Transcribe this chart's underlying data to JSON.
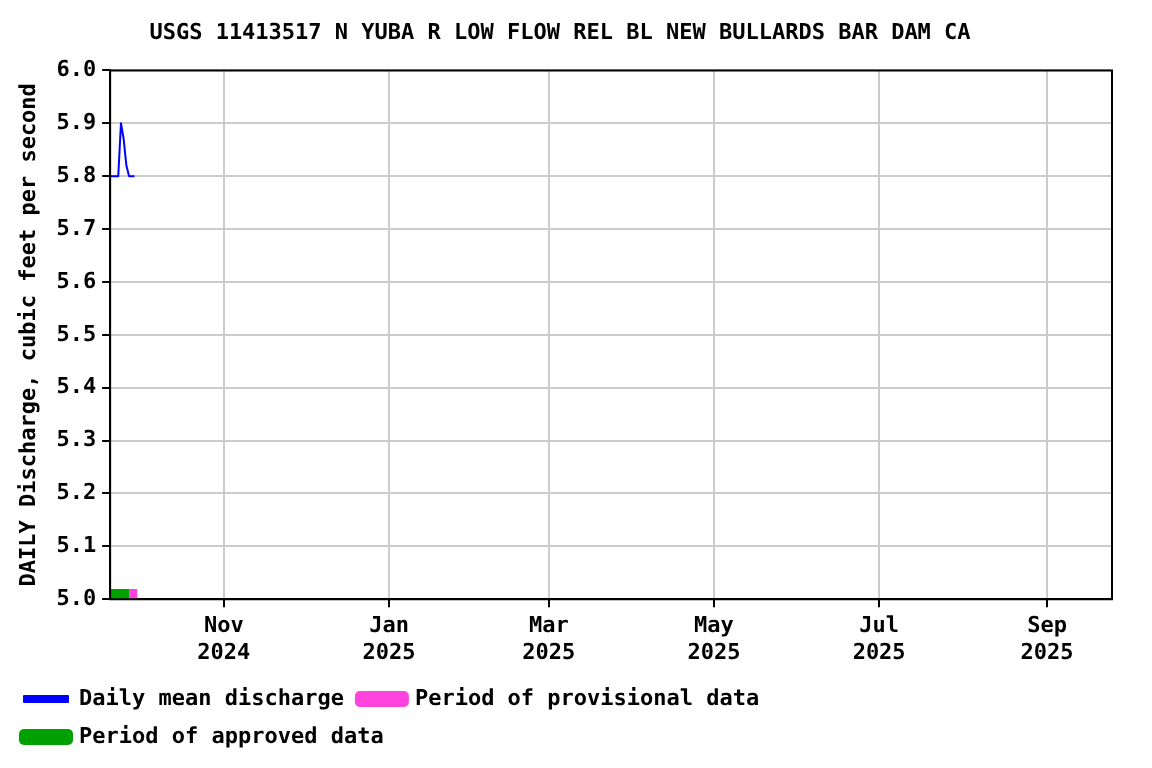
{
  "chart_data": {
    "type": "line",
    "title": "USGS 11413517 N YUBA R LOW FLOW REL BL NEW BULLARDS BAR DAM CA",
    "ylabel": "DAILY Discharge, cubic feet per second",
    "xlim": [
      "2024-09-20",
      "2025-09-25"
    ],
    "xticks": [
      {
        "value": "2024-11-01",
        "label": "Nov 2024"
      },
      {
        "value": "2025-01-01",
        "label": "Jan 2025"
      },
      {
        "value": "2025-03-01",
        "label": "Mar 2025"
      },
      {
        "value": "2025-05-01",
        "label": "May 2025"
      },
      {
        "value": "2025-07-01",
        "label": "Jul 2025"
      },
      {
        "value": "2025-09-01",
        "label": "Sep 2025"
      }
    ],
    "ylim": [
      5.0,
      6.0
    ],
    "yticks": [
      {
        "value": 5,
        "label": "5.0"
      },
      5.1,
      5.2,
      5.3,
      5.4,
      5.5,
      5.6,
      5.7,
      5.8,
      5.9,
      {
        "value": 6,
        "label": "6.0"
      }
    ],
    "grid": true,
    "legend": "bottom",
    "marker": "none",
    "series": [
      {
        "name": "Daily mean discharge",
        "color": "#0000ff",
        "x": [
          "2024-09-20",
          "2024-09-21",
          "2024-09-22",
          "2024-09-23",
          "2024-09-24",
          "2024-09-25",
          "2024-09-26",
          "2024-09-27",
          "2024-09-28",
          "2024-09-29"
        ],
        "values": [
          5.8,
          5.8,
          5.8,
          5.8,
          5.9,
          5.87,
          5.82,
          5.8,
          5.8,
          5.8
        ]
      },
      {
        "name": "Period of provisional data",
        "color": "#ff44dd",
        "x": [
          "2024-09-27",
          "2024-09-30"
        ],
        "values": [
          5.01,
          5.01
        ]
      },
      {
        "name": "Period of approved data",
        "color": "#00a000",
        "x": [
          "2024-09-20",
          "2024-09-27"
        ],
        "values": [
          5.01,
          5.01
        ]
      }
    ]
  }
}
